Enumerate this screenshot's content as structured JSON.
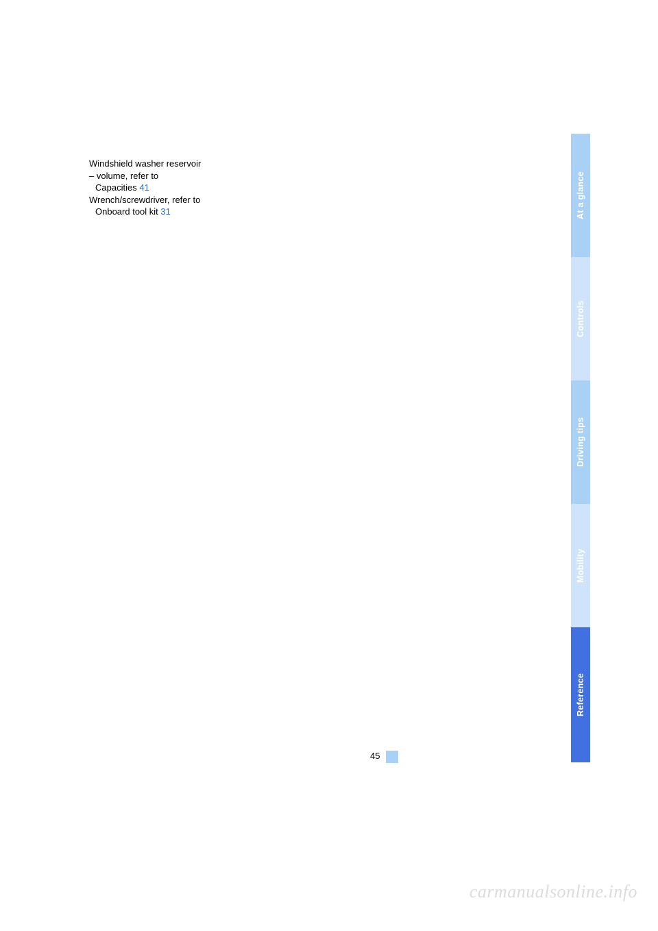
{
  "index": {
    "entry1_line1": "Windshield washer reservoir",
    "entry1_line2a": "– volume, refer to",
    "entry1_line2b": "Capacities",
    "entry1_ref": "41",
    "entry2_line1": "Wrench/screwdriver, refer to",
    "entry2_line2": "Onboard tool kit",
    "entry2_ref": "31"
  },
  "page_number": "45",
  "tabs": {
    "t1": "At a glance",
    "t2": "Controls",
    "t3": "Driving tips",
    "t4": "Mobility",
    "t5": "Reference"
  },
  "watermark": "carmanualsonline.info",
  "colors": {
    "link": "#2a6bd8",
    "tab_light": "#a9d0f5",
    "tab_lighter": "#cfe4fb",
    "tab_active": "#4170e0",
    "watermark": "#dcdcdc"
  }
}
